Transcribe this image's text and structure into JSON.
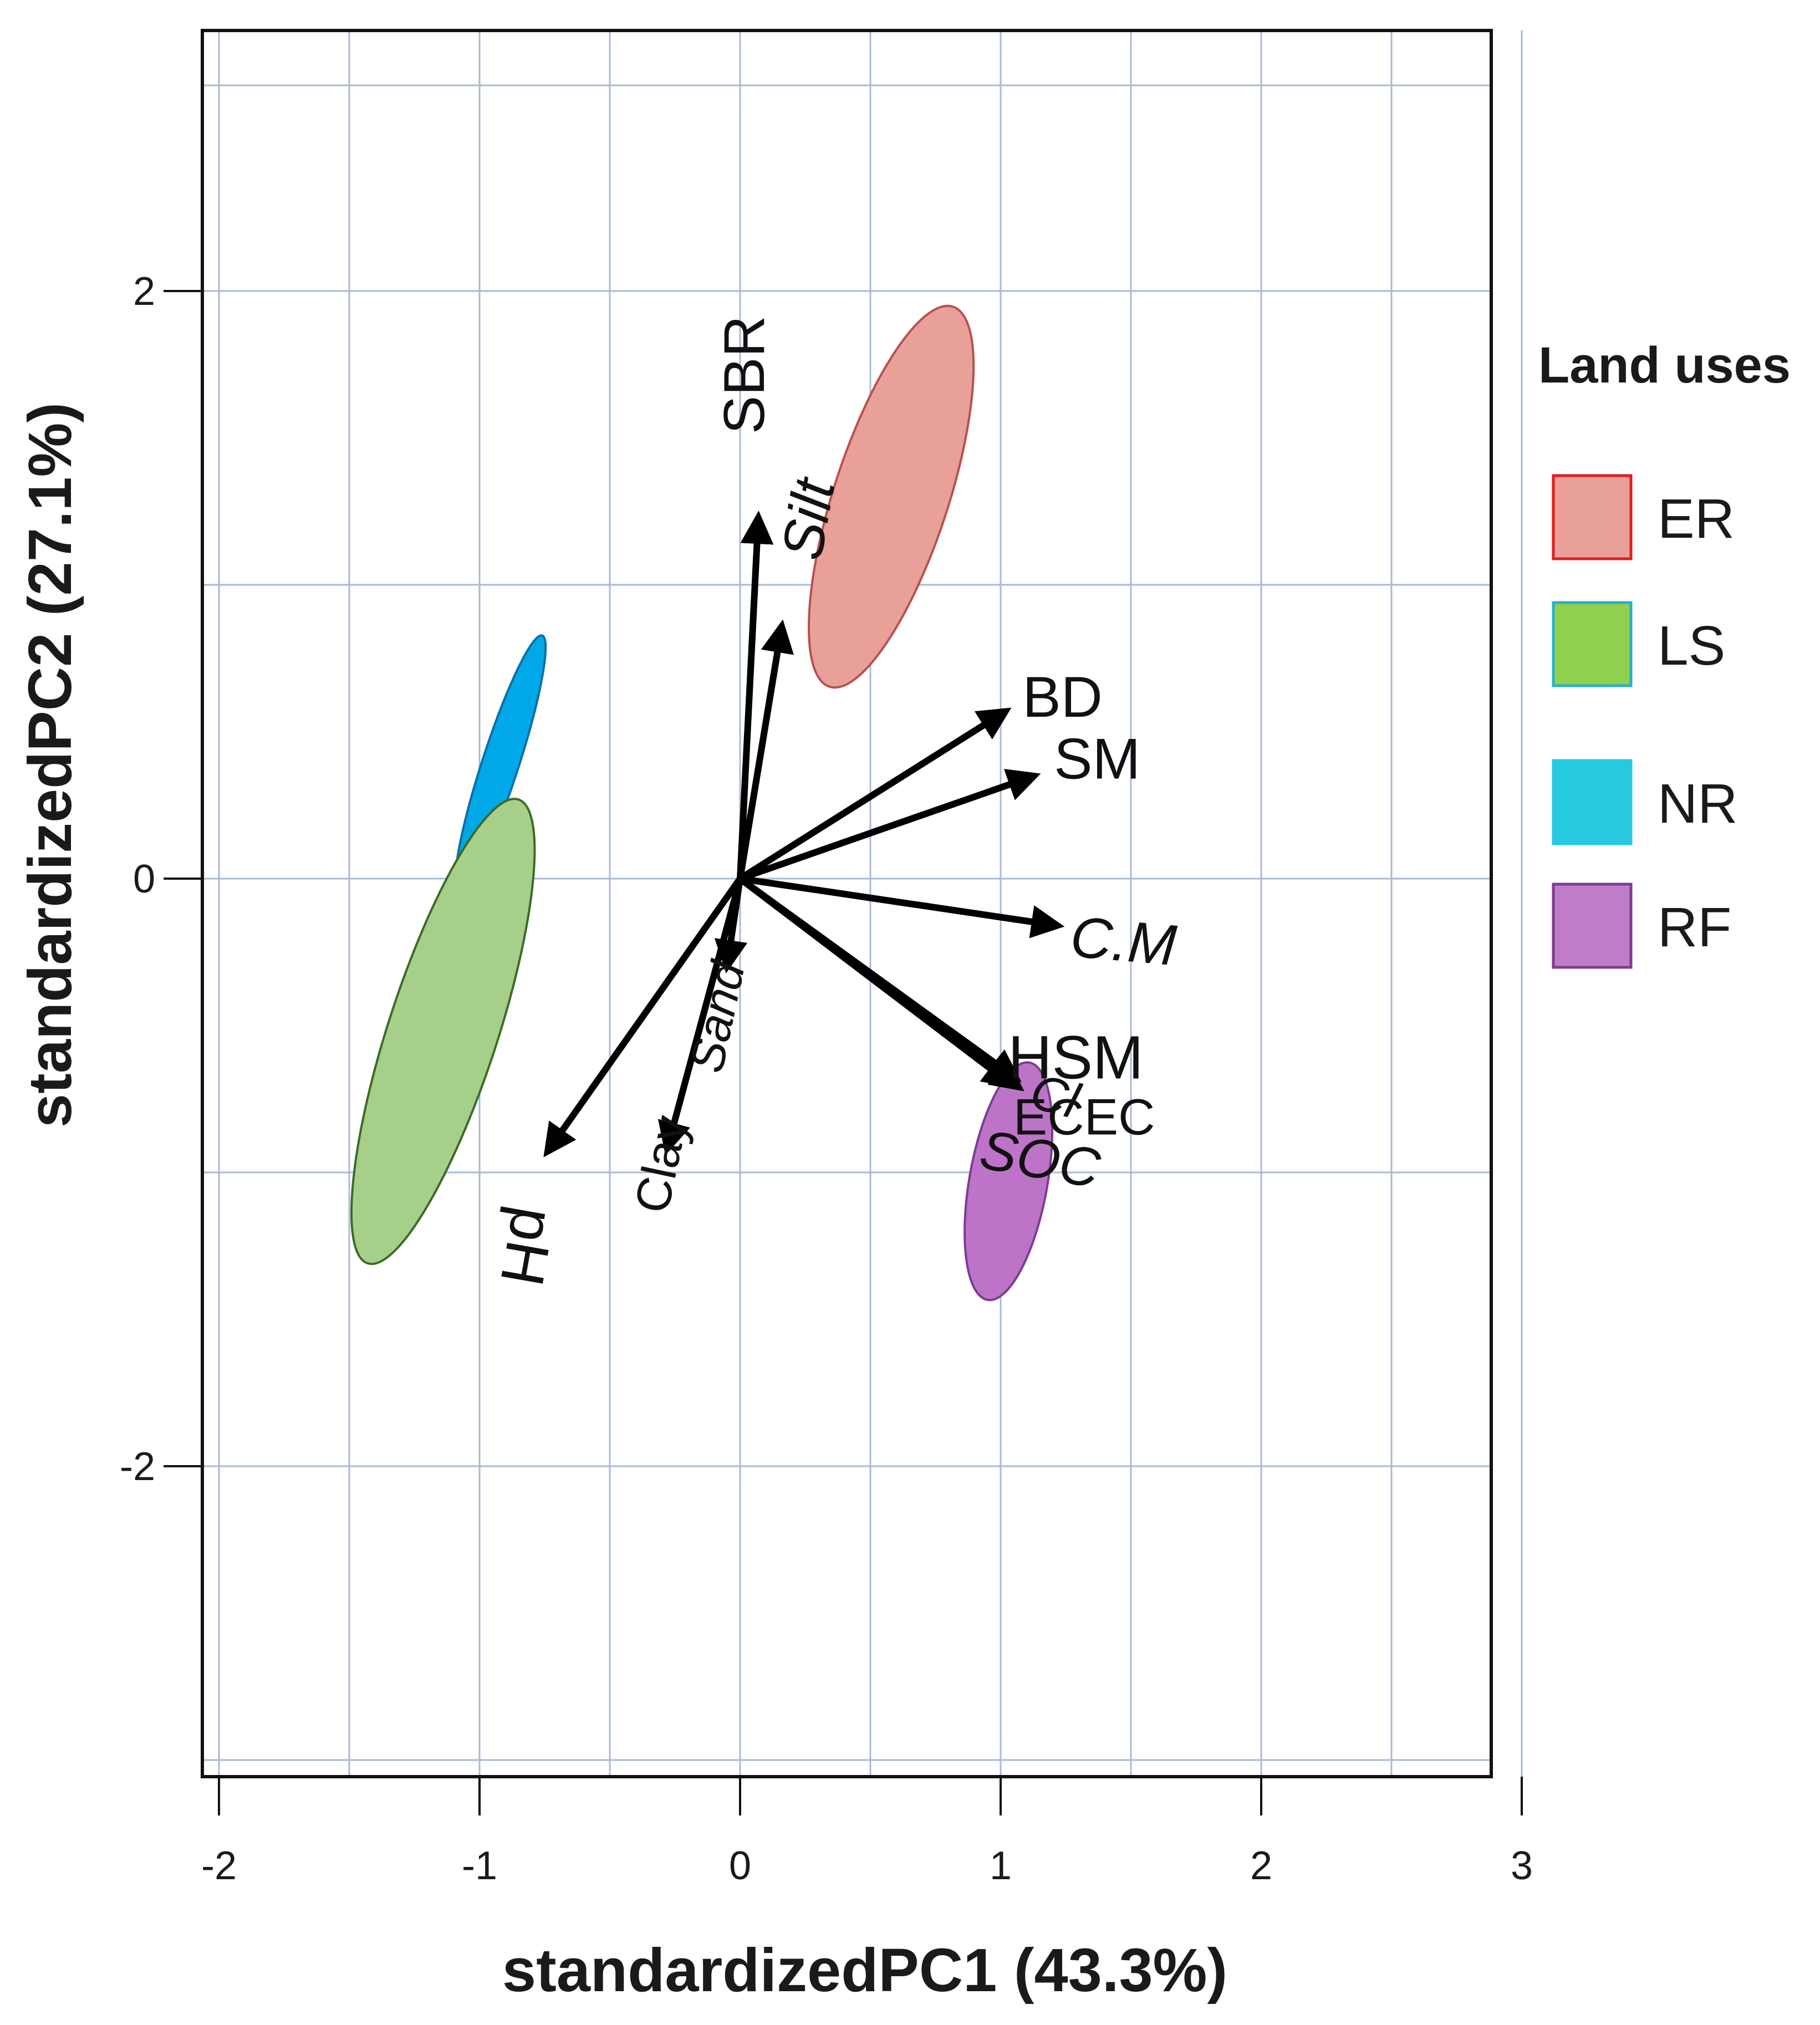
{
  "chart_data": {
    "type": "biplot",
    "xlabel": "standardizedPC1 (43.3%)",
    "ylabel": "standardizedPC2 (27.1%)",
    "x_ticks": [
      {
        "value": -2,
        "label": "-2"
      },
      {
        "value": -1,
        "label": "-1"
      },
      {
        "value": 0,
        "label": "0"
      },
      {
        "value": 1,
        "label": "1"
      },
      {
        "value": 2,
        "label": "2"
      },
      {
        "value": 3,
        "label": "3"
      }
    ],
    "y_ticks": [
      {
        "value": -2,
        "label": "-2"
      },
      {
        "value": 0,
        "label": "0"
      },
      {
        "value": 2,
        "label": "2"
      }
    ],
    "xlim": [
      -2.15,
      3.1
    ],
    "ylim": [
      -3.05,
      2.9
    ],
    "grid": true,
    "legend": {
      "title": "Land uses",
      "position": "right",
      "items": [
        {
          "label": "ER",
          "fill": "#e8a098",
          "stroke": "#e01e1e"
        },
        {
          "label": "LS",
          "fill": "#8fd14f",
          "stroke": "#2ab0c8"
        },
        {
          "label": "NR",
          "fill": "#26c9df",
          "stroke": "#26c9df"
        },
        {
          "label": "RF",
          "fill": "#c07cc6",
          "stroke": "#7a3d8f"
        }
      ]
    },
    "ellipses": [
      {
        "group": "ER",
        "cx": 0.58,
        "cy": 1.3,
        "rx": 0.22,
        "ry": 0.68,
        "angle": 18,
        "fill": "#e8a098",
        "stroke": "#b85050"
      },
      {
        "group": "NR",
        "cx": -0.92,
        "cy": 0.39,
        "rx": 0.07,
        "ry": 0.46,
        "angle": 18,
        "fill": "#00a8e8",
        "stroke": "#0a6fa8"
      },
      {
        "group": "LS",
        "cx": -1.14,
        "cy": -0.52,
        "rx": 0.21,
        "ry": 0.83,
        "angle": 18,
        "fill": "#a6cf8a",
        "stroke": "#3c6a28"
      },
      {
        "group": "RF",
        "cx": 1.03,
        "cy": -1.03,
        "rx": 0.15,
        "ry": 0.41,
        "angle": 10,
        "fill": "#bd73c8",
        "stroke": "#7a3d8f"
      }
    ],
    "loadings": [
      {
        "name": "SBR",
        "x": 0.07,
        "y": 1.23
      },
      {
        "name": "Silt",
        "x": 0.16,
        "y": 0.86
      },
      {
        "name": "BD",
        "x": 1.02,
        "y": 0.57
      },
      {
        "name": "SM",
        "x": 1.13,
        "y": 0.35
      },
      {
        "name": "C.M",
        "x": 1.22,
        "y": -0.16
      },
      {
        "name": "HSM",
        "x": 1.06,
        "y": -0.68
      },
      {
        "name": "Cl",
        "x": 1.04,
        "y": -0.7
      },
      {
        "name": "ECEC",
        "x": 1.07,
        "y": -0.71
      },
      {
        "name": "SOC",
        "x": 1.05,
        "y": -0.69
      },
      {
        "name": "Sand",
        "x": -0.05,
        "y": -0.3
      },
      {
        "name": "Clay",
        "x": -0.28,
        "y": -0.92
      },
      {
        "name": "pH",
        "x": -0.74,
        "y": -0.93
      }
    ]
  }
}
